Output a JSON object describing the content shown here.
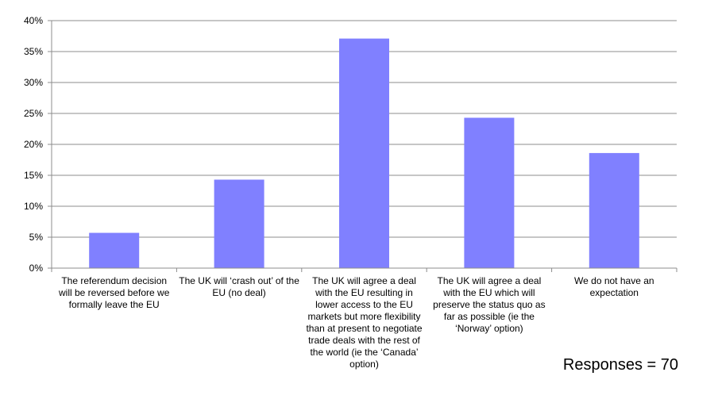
{
  "chart_data": {
    "type": "bar",
    "categories": [
      "The referendum decision will be reversed before we formally leave the EU",
      "The UK will ‘crash out’ of the EU (no deal)",
      "The UK will agree a deal with the EU resulting in lower access to the EU markets but more flexibility than at present to negotiate trade deals with the rest of the world (ie the ‘Canada’ option)",
      "The UK will agree a deal with the EU which will preserve the status quo as far as possible (ie the ‘Norway’ option)",
      "We do not have an expectation"
    ],
    "values": [
      5.7,
      14.3,
      37.1,
      24.3,
      18.6
    ],
    "ylim": [
      0,
      40
    ],
    "yticks": [
      0,
      5,
      10,
      15,
      20,
      25,
      30,
      35,
      40
    ],
    "ytick_labels": [
      "0%",
      "5%",
      "10%",
      "15%",
      "20%",
      "25%",
      "30%",
      "35%",
      "40%"
    ],
    "grid": true,
    "bar_color": "#8080ff",
    "title": "",
    "xlabel": "",
    "ylabel": ""
  },
  "annotation": {
    "responses": "Responses = 70"
  }
}
